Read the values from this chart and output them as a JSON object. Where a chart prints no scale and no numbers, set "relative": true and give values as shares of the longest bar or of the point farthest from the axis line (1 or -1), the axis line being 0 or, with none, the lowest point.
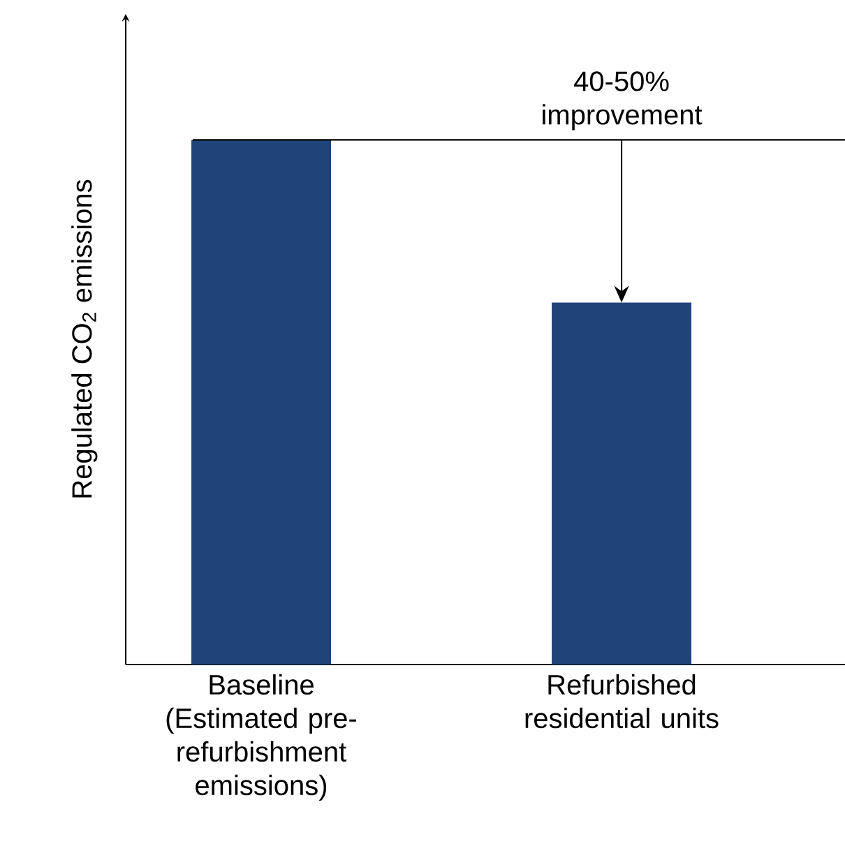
{
  "chart_data": {
    "type": "bar",
    "relative": true,
    "ylabel": "Regulated CO$_{2}$ emissions",
    "categories": [
      "Baseline (Estimated pre-refurbishment emissions)",
      "Refurbished residential units"
    ],
    "values": [
      1,
      0.69
    ],
    "color": "#1f4479",
    "ref_lines": [
      {
        "axis": "y",
        "value": 1,
        "label": "40-50% improvement"
      }
    ]
  }
}
